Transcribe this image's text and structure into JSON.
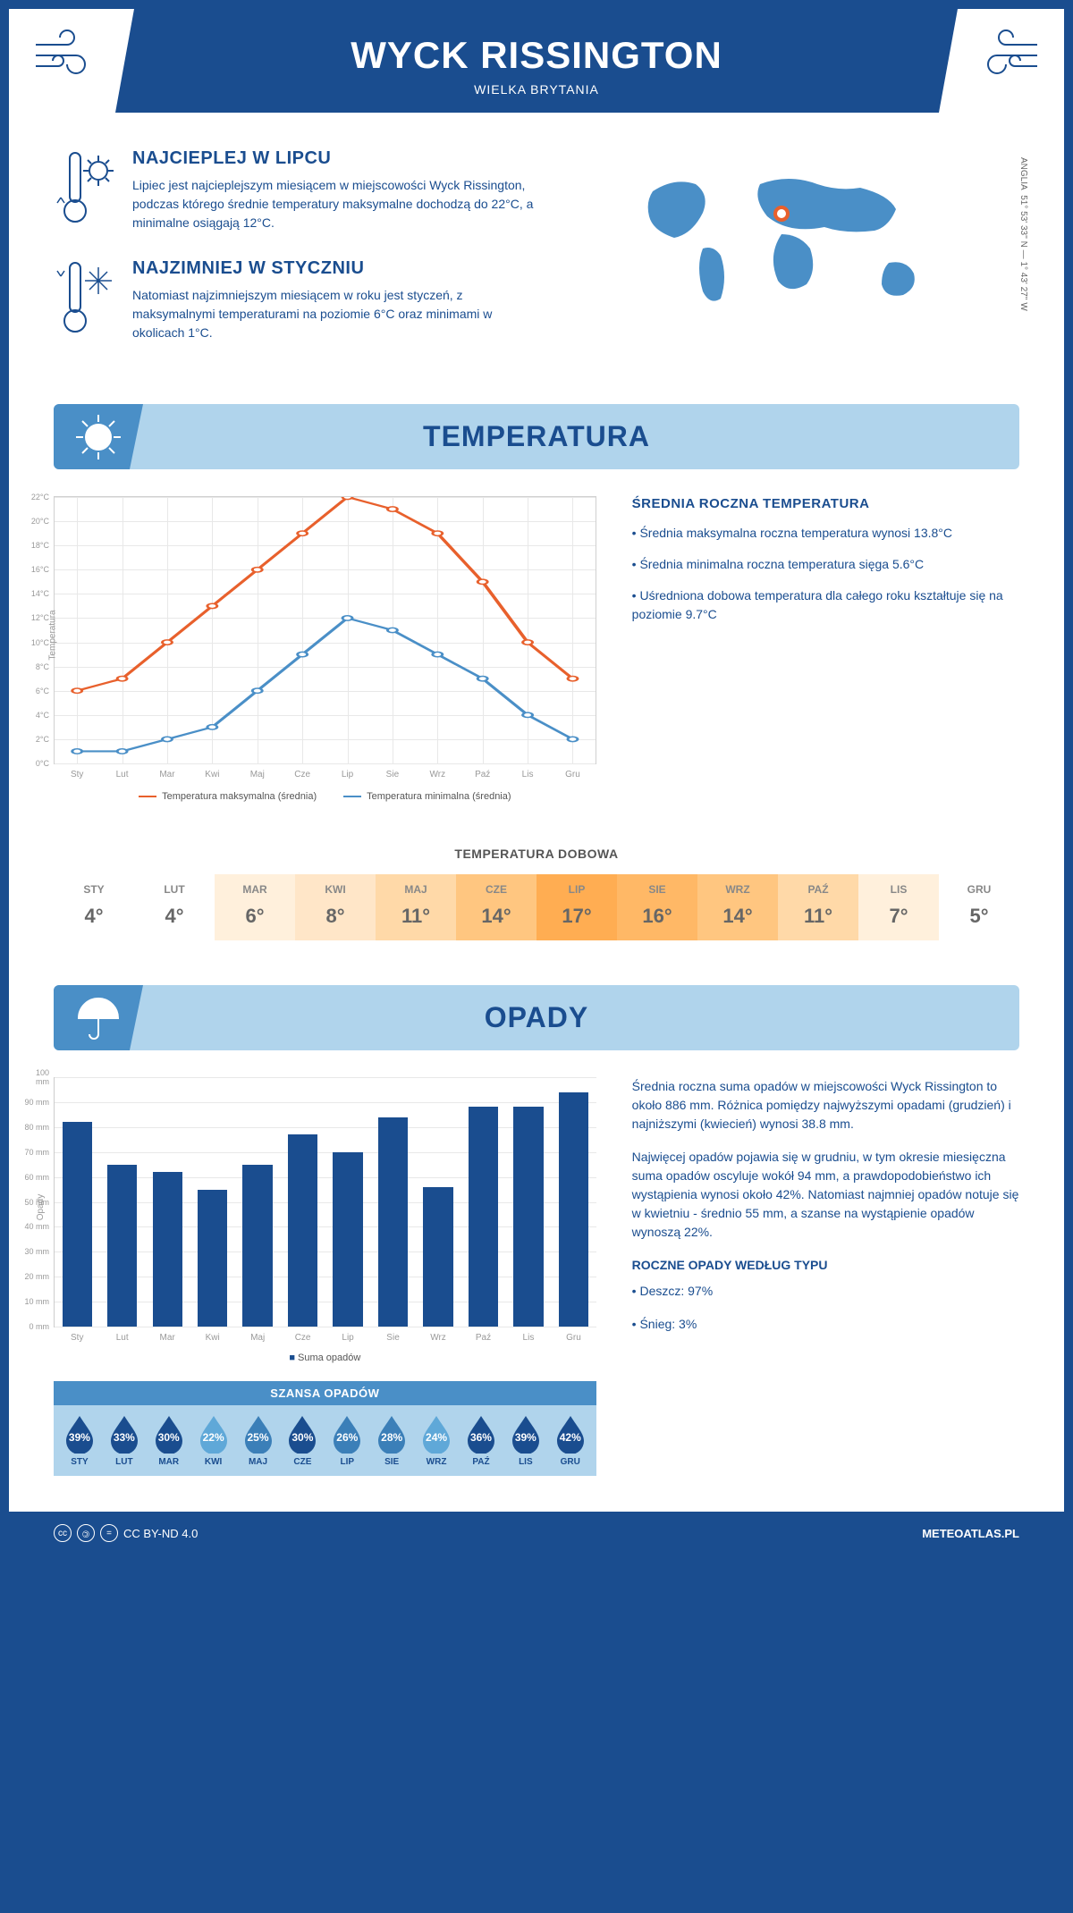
{
  "header": {
    "title": "WYCK RISSINGTON",
    "subtitle": "WIELKA BRYTANIA",
    "coords": "51° 53' 33'' N — 1° 43' 27'' W",
    "region": "ANGLIA"
  },
  "facts": {
    "hot": {
      "title": "NAJCIEPLEJ W LIPCU",
      "text": "Lipiec jest najcieplejszym miesiącem w miejscowości Wyck Rissington, podczas którego średnie temperatury maksymalne dochodzą do 22°C, a minimalne osiągają 12°C."
    },
    "cold": {
      "title": "NAJZIMNIEJ W STYCZNIU",
      "text": "Natomiast najzimniejszym miesiącem w roku jest styczeń, z maksymalnymi temperaturami na poziomie 6°C oraz minimami w okolicach 1°C."
    }
  },
  "months": [
    "Sty",
    "Lut",
    "Mar",
    "Kwi",
    "Maj",
    "Cze",
    "Lip",
    "Sie",
    "Wrz",
    "Paź",
    "Lis",
    "Gru"
  ],
  "months_upper": [
    "STY",
    "LUT",
    "MAR",
    "KWI",
    "MAJ",
    "CZE",
    "LIP",
    "SIE",
    "WRZ",
    "PAŹ",
    "LIS",
    "GRU"
  ],
  "temp": {
    "section_title": "TEMPERATURA",
    "y_label": "Temperatura",
    "ylim": [
      0,
      22
    ],
    "ytick_step": 2,
    "ytick_suffix": "°C",
    "max_series": {
      "label": "Temperatura maksymalna (średnia)",
      "color": "#e8602c",
      "values": [
        6,
        7,
        10,
        13,
        16,
        19,
        22,
        21,
        19,
        15,
        10,
        7
      ]
    },
    "min_series": {
      "label": "Temperatura minimalna (średnia)",
      "color": "#4a8fc7",
      "values": [
        1,
        1,
        2,
        3,
        6,
        9,
        12,
        11,
        9,
        7,
        4,
        2
      ]
    },
    "summary": {
      "title": "ŚREDNIA ROCZNA TEMPERATURA",
      "b1": "• Średnia maksymalna roczna temperatura wynosi 13.8°C",
      "b2": "• Średnia minimalna roczna temperatura sięga 5.6°C",
      "b3": "• Uśredniona dobowa temperatura dla całego roku kształtuje się na poziomie 9.7°C"
    },
    "daily": {
      "title": "TEMPERATURA DOBOWA",
      "values": [
        4,
        4,
        6,
        8,
        11,
        14,
        17,
        16,
        14,
        11,
        7,
        5
      ],
      "colors": [
        "#ffffff",
        "#ffffff",
        "#fff0dc",
        "#ffe6c8",
        "#ffd9a8",
        "#ffc680",
        "#ffad52",
        "#ffb866",
        "#ffc680",
        "#ffd9a8",
        "#fff0dc",
        "#ffffff"
      ]
    }
  },
  "precip": {
    "section_title": "OPADY",
    "y_label": "Opady",
    "ylim": [
      0,
      100
    ],
    "ytick_step": 10,
    "ytick_suffix": " mm",
    "values": [
      82,
      65,
      62,
      55,
      65,
      77,
      70,
      84,
      56,
      88,
      88,
      94
    ],
    "bar_color": "#1a4d8f",
    "legend": "Suma opadów",
    "text1": "Średnia roczna suma opadów w miejscowości Wyck Rissington to około 886 mm. Różnica pomiędzy najwyższymi opadami (grudzień) i najniższymi (kwiecień) wynosi 38.8 mm.",
    "text2": "Najwięcej opadów pojawia się w grudniu, w tym okresie miesięczna suma opadów oscyluje wokół 94 mm, a prawdopodobieństwo ich wystąpienia wynosi około 42%. Natomiast najmniej opadów notuje się w kwietniu - średnio 55 mm, a szanse na wystąpienie opadów wynoszą 22%.",
    "chance": {
      "title": "SZANSA OPADÓW",
      "values": [
        39,
        33,
        30,
        22,
        25,
        30,
        26,
        28,
        24,
        36,
        39,
        42
      ],
      "drop_colors": [
        "#1a4d8f",
        "#1a4d8f",
        "#1a4d8f",
        "#5fa8d8",
        "#3b7fb8",
        "#1a4d8f",
        "#3b7fb8",
        "#3b7fb8",
        "#5fa8d8",
        "#1a4d8f",
        "#1a4d8f",
        "#1a4d8f"
      ]
    },
    "bytype": {
      "title": "ROCZNE OPADY WEDŁUG TYPU",
      "rain": "• Deszcz: 97%",
      "snow": "• Śnieg: 3%"
    }
  },
  "footer": {
    "license": "CC BY-ND 4.0",
    "site": "METEOATLAS.PL"
  },
  "colors": {
    "primary": "#1a4d8f",
    "light": "#b0d4ec",
    "mid": "#4a8fc7"
  }
}
